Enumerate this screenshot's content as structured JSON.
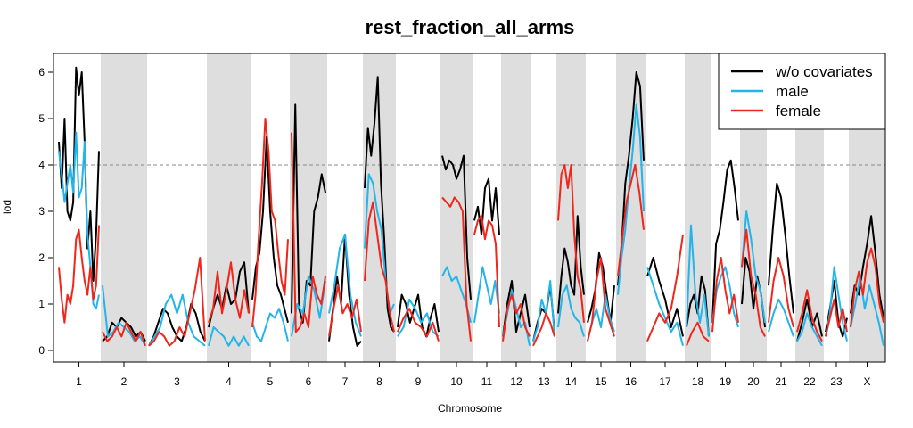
{
  "chart_data": {
    "type": "line",
    "title": "rest_fraction_all_arms",
    "xlabel": "Chromosome",
    "ylabel": "lod",
    "ylim": [
      0,
      6.2
    ],
    "yticks": [
      0,
      1,
      2,
      3,
      4,
      5,
      6
    ],
    "threshold": 4,
    "chromosomes": [
      "1",
      "2",
      "3",
      "4",
      "5",
      "6",
      "7",
      "8",
      "9",
      "10",
      "11",
      "12",
      "13",
      "14",
      "15",
      "16",
      "17",
      "18",
      "19",
      "20",
      "21",
      "22",
      "23",
      "X"
    ],
    "shaded_chromosomes": [
      "2",
      "4",
      "6",
      "8",
      "10",
      "12",
      "14",
      "16",
      "18",
      "20",
      "22",
      "X"
    ],
    "legend_position": "top-right",
    "series": [
      {
        "name": "w/o covariates",
        "color": "#000000",
        "values": [
          [
            4.5,
            3.5,
            5.0,
            3.0,
            2.8,
            3.2,
            6.1,
            5.5,
            6.0,
            4.5,
            2.2,
            3.0,
            1.5,
            2.5,
            4.3
          ],
          [
            0.2,
            0.3,
            0.6,
            0.5,
            0.7,
            0.6,
            0.5,
            0.3,
            0.4,
            0.2
          ],
          [
            0.1,
            0.3,
            0.6,
            0.9,
            0.8,
            0.5,
            0.3,
            0.2,
            0.5,
            1.0,
            0.8,
            0.4,
            0.2
          ],
          [
            0.5,
            0.9,
            1.2,
            0.9,
            1.4,
            1.0,
            1.1,
            1.7,
            1.9,
            0.8
          ],
          [
            1.1,
            1.8,
            2.1,
            3.0,
            4.6,
            3.0,
            2.0,
            1.4,
            1.2,
            0.9,
            0.6
          ],
          [
            0.8,
            5.3,
            0.9,
            0.6,
            1.5,
            1.4,
            3.0,
            3.3,
            3.8,
            3.4
          ],
          [
            0.2,
            0.9,
            1.6,
            1.0,
            2.5,
            1.2,
            0.5,
            0.1,
            0.2
          ],
          [
            3.5,
            4.8,
            4.2,
            4.9,
            5.9,
            3.6,
            2.4,
            0.9,
            0.5,
            0.4
          ],
          [
            0.5,
            1.2,
            1.0,
            0.6,
            0.9,
            1.2,
            0.5,
            0.3,
            0.7,
            1.0,
            0.4
          ],
          [
            4.2,
            3.9,
            4.1,
            4.0,
            3.7,
            3.9,
            4.2,
            2.0,
            1.1
          ],
          [
            2.8,
            3.1,
            2.5,
            3.5,
            3.7,
            2.8,
            3.5,
            2.5
          ],
          [
            0.3,
            1.0,
            1.5,
            0.4,
            0.8,
            1.2,
            0.5
          ],
          [
            0.2,
            0.6,
            0.9,
            0.8,
            1.4,
            0.4
          ],
          [
            0.8,
            1.6,
            2.2,
            1.9,
            1.4,
            1.2,
            2.9,
            1.8,
            1.2
          ],
          [
            0.6,
            0.9,
            1.3,
            2.1,
            1.8,
            1.2,
            0.6,
            1.4
          ],
          [
            1.4,
            2.2,
            3.6,
            4.2,
            5.0,
            6.0,
            5.7,
            4.1
          ],
          [
            1.6,
            2.0,
            1.5,
            1.1,
            0.5,
            0.9,
            0.3
          ],
          [
            0.5,
            1.0,
            1.2,
            0.8,
            1.6,
            1.3,
            0.3
          ],
          [
            0.6,
            2.3,
            2.6,
            3.2,
            3.9,
            4.1,
            3.5,
            2.8
          ],
          [
            1.0,
            2.0,
            1.7,
            0.9,
            1.6,
            1.2,
            0.5
          ],
          [
            1.4,
            2.6,
            3.6,
            3.3,
            2.5,
            1.6,
            0.8
          ],
          [
            0.2,
            0.6,
            1.1,
            0.5,
            0.8,
            0.3
          ],
          [
            0.4,
            0.9,
            1.5,
            0.6,
            0.3,
            0.7
          ],
          [
            0.8,
            1.4,
            1.2,
            1.8,
            2.3,
            2.9,
            2.1,
            1.2,
            0.7
          ]
        ]
      },
      {
        "name": "male",
        "color": "#22B4EA",
        "values": [
          [
            4.3,
            3.8,
            3.2,
            3.6,
            4.0,
            3.4,
            4.7,
            3.3,
            3.5,
            4.5,
            2.5,
            1.8,
            1.0,
            0.9,
            1.2
          ],
          [
            1.4,
            0.3,
            0.4,
            0.6,
            0.5,
            0.4,
            0.2,
            0.3,
            0.1
          ],
          [
            0.1,
            0.3,
            0.5,
            1.0,
            1.2,
            0.8,
            1.2,
            0.6,
            0.3,
            0.2,
            0.1
          ],
          [
            0.1,
            0.5,
            0.4,
            0.3,
            0.1,
            0.3,
            0.1,
            0.3,
            0.1
          ],
          [
            0.6,
            0.3,
            0.2,
            0.5,
            0.8,
            0.7,
            0.9,
            0.6,
            0.2
          ],
          [
            0.3,
            1.0,
            0.8,
            1.6,
            1.3,
            0.7,
            1.5
          ],
          [
            0.8,
            1.4,
            2.2,
            2.5,
            1.2,
            0.6,
            0.3
          ],
          [
            2.2,
            3.8,
            3.6,
            3.0,
            2.6,
            1.5,
            0.8,
            1.0
          ],
          [
            0.3,
            0.5,
            1.1,
            0.9,
            0.6,
            0.8,
            0.4,
            0.3
          ],
          [
            1.6,
            1.8,
            1.5,
            1.6,
            1.3,
            1.0,
            0.6
          ],
          [
            0.6,
            1.2,
            1.8,
            1.4,
            1.0,
            1.5,
            0.8
          ],
          [
            0.3,
            0.8,
            1.3,
            0.9,
            0.5,
            0.6,
            0.1
          ],
          [
            0.2,
            0.5,
            1.1,
            0.8,
            1.5,
            0.3
          ],
          [
            0.5,
            1.2,
            1.4,
            0.9,
            0.7,
            0.6,
            0.3
          ],
          [
            0.2,
            0.6,
            0.9,
            0.5,
            1.2,
            0.7,
            0.4
          ],
          [
            1.2,
            2.0,
            2.6,
            3.5,
            4.3,
            5.3,
            4.6,
            3.0
          ],
          [
            1.8,
            1.4,
            1.0,
            0.7,
            0.4,
            0.6,
            0.1
          ],
          [
            0.5,
            2.7,
            1.2,
            0.6,
            1.2,
            0.3
          ],
          [
            0.6,
            1.3,
            1.6,
            1.8,
            1.4,
            0.8,
            0.5
          ],
          [
            1.8,
            3.0,
            2.4,
            1.6,
            1.3,
            0.6
          ],
          [
            0.4,
            0.8,
            1.1,
            0.9,
            0.6,
            0.3
          ],
          [
            0.2,
            0.4,
            0.8,
            0.5,
            0.3,
            0.1
          ],
          [
            0.3,
            0.8,
            1.8,
            1.2,
            0.6,
            0.2
          ],
          [
            0.5,
            1.0,
            1.6,
            0.9,
            1.4,
            1.0,
            0.6,
            0.1
          ]
        ]
      },
      {
        "name": "female",
        "color": "#F0261B",
        "values": [
          [
            1.8,
            1.1,
            0.6,
            1.2,
            1.0,
            1.4,
            2.4,
            2.6,
            2.0,
            1.5,
            1.2,
            1.8,
            1.1,
            1.4,
            2.7
          ],
          [
            0.4,
            0.2,
            0.3,
            0.5,
            0.3,
            0.6,
            0.4,
            0.2,
            0.4,
            0.1
          ],
          [
            0.1,
            0.2,
            0.4,
            0.3,
            0.1,
            0.2,
            0.5,
            0.3,
            0.8,
            1.3,
            2.0,
            0.2
          ],
          [
            0.6,
            0.9,
            1.7,
            0.8,
            1.3,
            1.9,
            1.1,
            0.7,
            1.3,
            0.8
          ],
          [
            0.5,
            1.2,
            2.5,
            3.6,
            5.0,
            4.3,
            3.0,
            2.8,
            2.1,
            1.5,
            1.2,
            2.4
          ],
          [
            4.7,
            0.4,
            0.5,
            0.8,
            0.5,
            1.6,
            1.2,
            1.0,
            1.6
          ],
          [
            0.3,
            0.9,
            1.4,
            0.8,
            1.0,
            0.7,
            1.1,
            0.4
          ],
          [
            1.5,
            2.8,
            3.2,
            2.5,
            1.8,
            1.5,
            0.8,
            0.4
          ],
          [
            0.4,
            0.7,
            0.9,
            0.6,
            0.5,
            0.3,
            0.6,
            0.2
          ],
          [
            3.3,
            3.2,
            3.1,
            3.3,
            3.2,
            3.0,
            1.0,
            0.2
          ],
          [
            2.5,
            2.8,
            2.9,
            2.4,
            2.8,
            2.7,
            2.3,
            0.5
          ],
          [
            0.2,
            0.9,
            1.2,
            0.8,
            1.0,
            0.5,
            0.3
          ],
          [
            0.1,
            0.3,
            0.5,
            0.8,
            0.6,
            0.3
          ],
          [
            2.8,
            3.8,
            4.0,
            3.5,
            4.0,
            2.5,
            1.6,
            1.3,
            0.6
          ],
          [
            0.2,
            0.6,
            1.5,
            2.0,
            0.9,
            0.6,
            0.3
          ],
          [
            1.6,
            2.4,
            3.2,
            3.6,
            4.0,
            3.4,
            2.6
          ],
          [
            0.2,
            0.5,
            0.8,
            0.6,
            0.9,
            1.6,
            2.5
          ],
          [
            0.1,
            0.4,
            0.6,
            0.3,
            0.2
          ],
          [
            0.4,
            1.5,
            2.0,
            1.3,
            0.8,
            1.2,
            0.6
          ],
          [
            1.8,
            2.6,
            1.6,
            1.2,
            0.5,
            0.3
          ],
          [
            0.6,
            1.5,
            2.0,
            1.6,
            0.9,
            0.5
          ],
          [
            0.4,
            0.8,
            1.3,
            0.7,
            0.4,
            0.2
          ],
          [
            0.3,
            0.7,
            1.1,
            0.5,
            0.9,
            0.4
          ],
          [
            0.5,
            1.3,
            1.7,
            1.2,
            1.9,
            2.2,
            1.8,
            1.0,
            0.6
          ]
        ]
      }
    ]
  }
}
